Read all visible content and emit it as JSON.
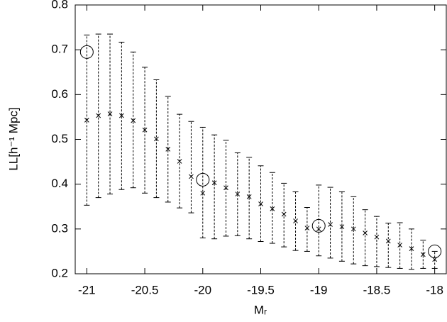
{
  "chart_data": {
    "type": "errorbar",
    "xlabel": "Mᵣ",
    "ylabel": "LL[h⁻¹ Mpc]",
    "xlim": [
      -21.1,
      -17.9
    ],
    "ylim": [
      0.2,
      0.8
    ],
    "xticks": [
      -21,
      -20.5,
      -20,
      -19.5,
      -19,
      -18.5,
      -18
    ],
    "yticks": [
      0.2,
      0.3,
      0.4,
      0.5,
      0.6,
      0.7,
      0.8
    ],
    "series": [
      {
        "marker": "cross",
        "color": "#000000",
        "x": [
          -21.0,
          -20.9,
          -20.8,
          -20.7,
          -20.6,
          -20.5,
          -20.4,
          -20.3,
          -20.2,
          -20.1,
          -20.0,
          -19.9,
          -19.8,
          -19.7,
          -19.6,
          -19.5,
          -19.4,
          -19.3,
          -19.2,
          -19.1,
          -19.0,
          -18.9,
          -18.8,
          -18.7,
          -18.6,
          -18.5,
          -18.4,
          -18.3,
          -18.2,
          -18.1,
          -18.0
        ],
        "values": [
          0.543,
          0.553,
          0.557,
          0.553,
          0.542,
          0.521,
          0.501,
          0.478,
          0.451,
          0.417,
          0.38,
          0.403,
          0.392,
          0.378,
          0.372,
          0.356,
          0.345,
          0.333,
          0.318,
          0.302,
          0.3,
          0.31,
          0.305,
          0.3,
          0.291,
          0.282,
          0.273,
          0.264,
          0.256,
          0.243,
          0.232
        ],
        "lower": [
          0.353,
          0.37,
          0.378,
          0.388,
          0.392,
          0.38,
          0.37,
          0.36,
          0.347,
          0.336,
          0.28,
          0.278,
          0.284,
          0.285,
          0.278,
          0.272,
          0.268,
          0.26,
          0.252,
          0.25,
          0.24,
          0.235,
          0.228,
          0.222,
          0.218,
          0.216,
          0.214,
          0.212,
          0.21,
          0.212,
          0.212
        ],
        "upper": [
          0.733,
          0.735,
          0.735,
          0.717,
          0.695,
          0.661,
          0.633,
          0.596,
          0.556,
          0.54,
          0.527,
          0.51,
          0.498,
          0.47,
          0.46,
          0.441,
          0.426,
          0.402,
          0.383,
          0.348,
          0.398,
          0.393,
          0.383,
          0.372,
          0.343,
          0.328,
          0.313,
          0.314,
          0.3,
          0.275,
          0.25
        ]
      },
      {
        "marker": "circle",
        "color": "#000000",
        "x": [
          -21.0,
          -20.0,
          -19.0,
          -18.0
        ],
        "values": [
          0.695,
          0.41,
          0.307,
          0.25
        ]
      }
    ]
  }
}
